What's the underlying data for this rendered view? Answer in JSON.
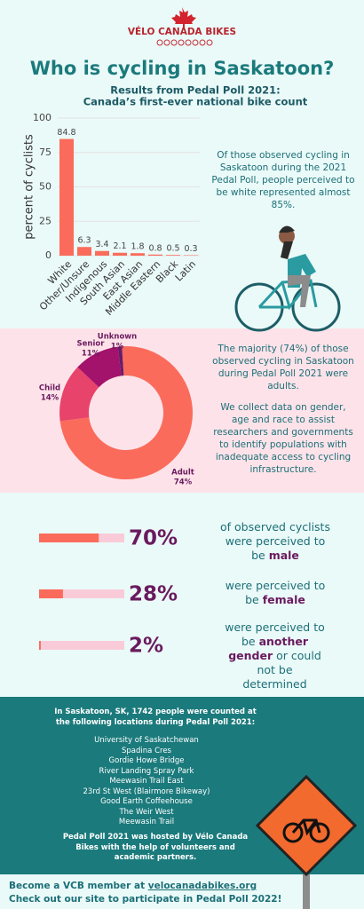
{
  "header": {
    "logo": "VÉLO CANADA BIKES",
    "title": "Who is cycling in Saskatoon?",
    "subtitle": [
      "Results from Pedal Poll 2021:",
      "Canada’s first-ever national bike count"
    ]
  },
  "chart_data": [
    {
      "type": "bar",
      "y_label": "percent of cyclists",
      "categories": [
        "White",
        "Other/Unsure",
        "Indigenous",
        "South Asian",
        "East Asian",
        "Middle Eastern",
        "Black",
        "Latin"
      ],
      "values": [
        84.8,
        6.3,
        3.4,
        2.1,
        1.8,
        0.8,
        0.5,
        0.3
      ],
      "color": "#fb6b5b",
      "ylim": [
        0,
        100
      ],
      "yticks": [
        0,
        25,
        50,
        75,
        100
      ],
      "grid": true
    },
    {
      "type": "donut",
      "categories": [
        "Adult",
        "Child",
        "Senior",
        "Unknown"
      ],
      "values": [
        74,
        14,
        11,
        1
      ],
      "value_labels": [
        "74%",
        "14%",
        "11%",
        "1%"
      ],
      "colors": [
        "#fb6b5b",
        "#e8436b",
        "#a3126b",
        "#6a1a6a"
      ]
    },
    {
      "type": "progress",
      "values": [
        70,
        28,
        2
      ],
      "value_labels": [
        "70%",
        "28%",
        "2%"
      ],
      "xlim": [
        0,
        100
      ],
      "color": "#fb6b5b",
      "track_color": "#f9cbd8"
    }
  ],
  "race_note": "Of those observed cycling in Saskatoon during the 2021 Pedal Poll, people perceived to be white represented almost 85%.",
  "age_notes": [
    "The majority (74%) of those observed cycling in Saskatoon during Pedal Poll 2021 were adults.",
    "We collect data on gender, age and race to assist researchers and governments to identify populations with inadequate access to cycling infrastructure."
  ],
  "gender_text": [
    {
      "pre": "of observed cyclists were perceived to be",
      "bold": "male"
    },
    {
      "pre": "were perceived to be",
      "bold": "female"
    },
    {
      "pre": "were perceived to be",
      "bold": "another gender",
      "post": "or could not be determined"
    }
  ],
  "count_intro": "In Saskatoon, SK, 1742 people were counted at the following locations during Pedal Poll 2021:",
  "locations": [
    "University of Saskatchewan",
    "Spadina Cres",
    "Gordie Howe Bridge",
    "River Landing Spray Park",
    "Meewasin Trail East",
    "23rd St West (Blairmore Bikeway)",
    "Good Earth Coffeehouse",
    "The Weir West",
    "Meewasin Trail"
  ],
  "hosted": "Pedal Poll 2021 was hosted by Vélo Canada Bikes with the help of volunteers and academic partners.",
  "footer": {
    "member": "Become a VCB member at",
    "link": "velocanadabikes.org",
    "participate": "Check out our site to participate in Pedal Poll 2022!"
  }
}
